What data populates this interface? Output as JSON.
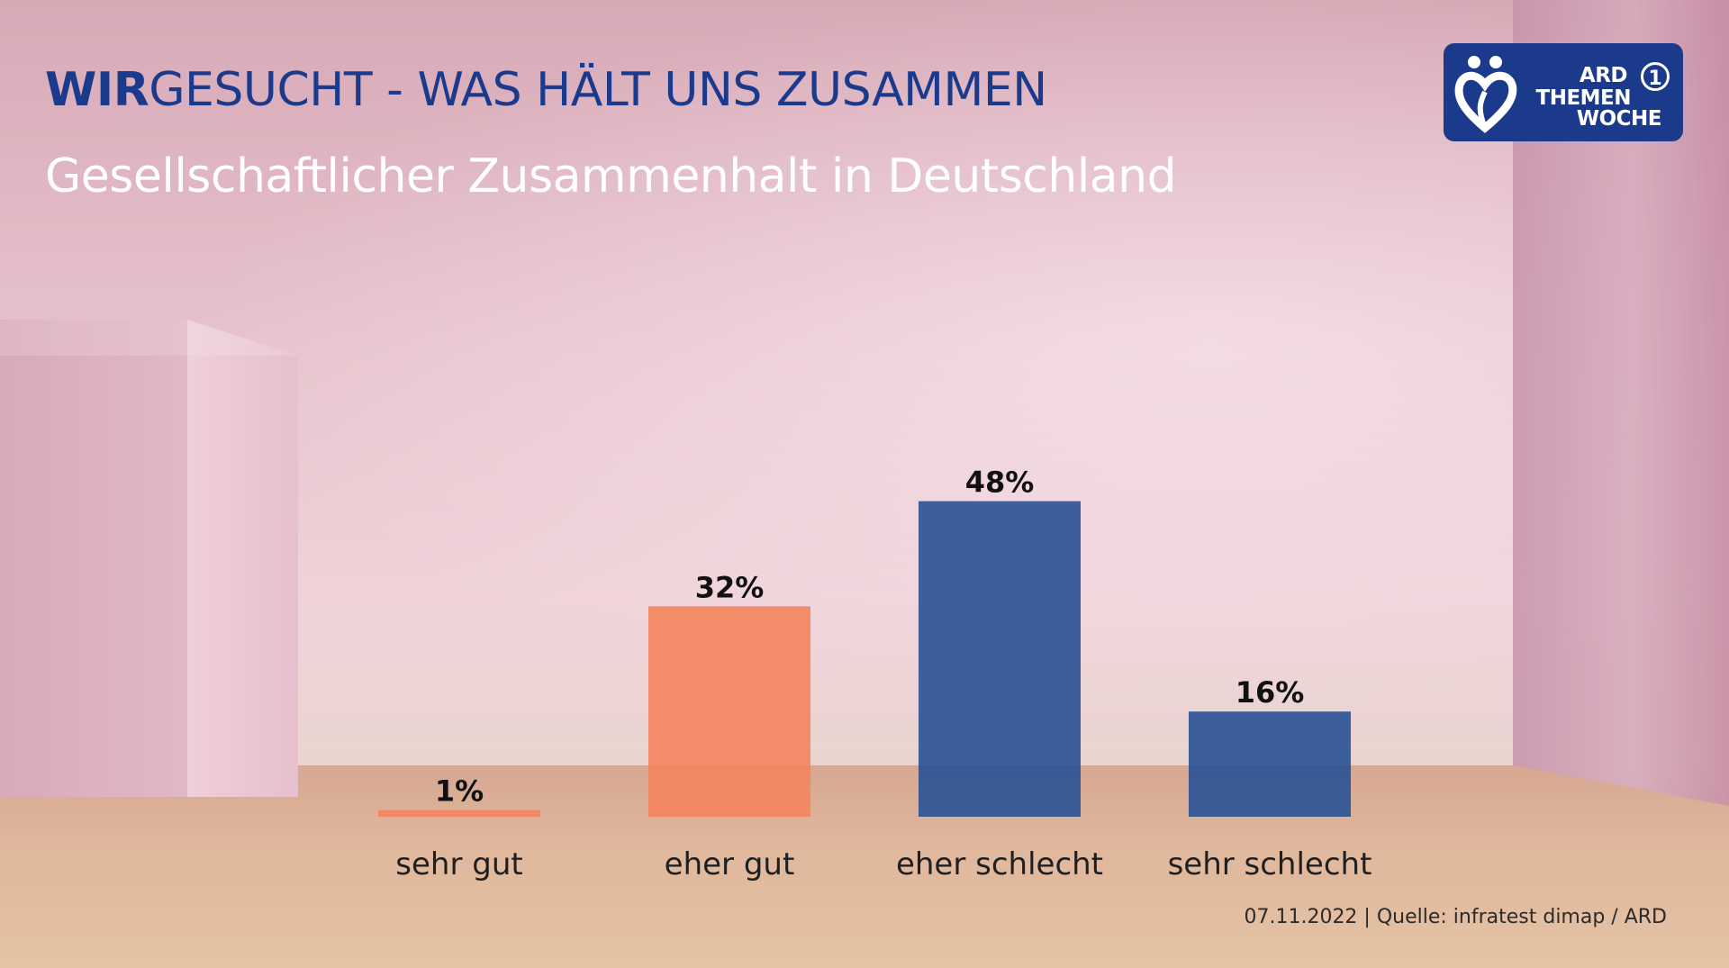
{
  "header": {
    "title_strong": "WIR",
    "title_rest": "GESUCHT - WAS HÄLT UNS ZUSAMMEN",
    "subtitle": "Gesellschaftlicher Zusammenhalt in Deutschland"
  },
  "logo": {
    "line1": "ARD",
    "line2": "THEMEN",
    "line3": "WOCHE",
    "one": "1",
    "icon": "heart-people-icon"
  },
  "chart_data": {
    "type": "bar",
    "categories": [
      "sehr gut",
      "eher gut",
      "eher schlecht",
      "sehr schlecht"
    ],
    "values": [
      1,
      32,
      48,
      16
    ],
    "data_labels": [
      "1%",
      "32%",
      "48%",
      "16%"
    ],
    "unit": "%",
    "colors": [
      "#f4845f",
      "#f4845f",
      "#2d5496",
      "#2d5496"
    ],
    "ylim": [
      0,
      50
    ],
    "grid": false,
    "legend": "none"
  },
  "footer": {
    "source": "07.11.2022 | Quelle: infratest dimap / ARD"
  }
}
